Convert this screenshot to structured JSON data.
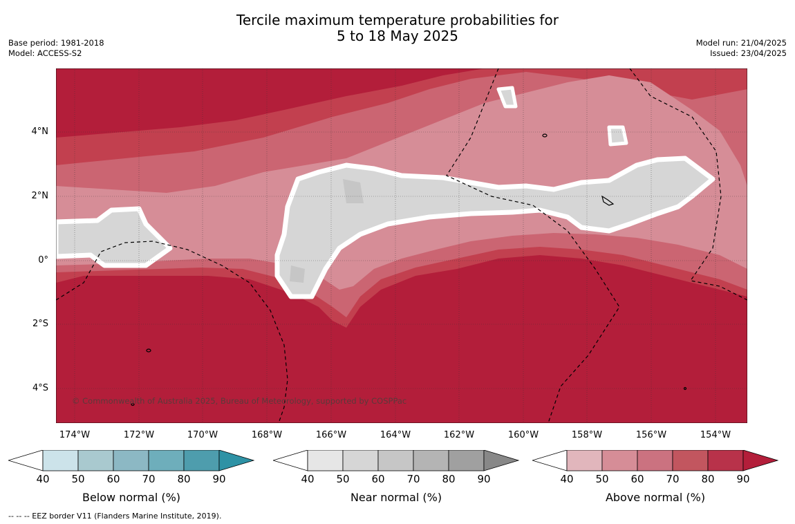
{
  "header": {
    "title_line1": "Tercile maximum temperature probabilities for",
    "title_line2": "5 to 18 May 2025",
    "base_period": "Base period: 1981-2018",
    "model": "Model: ACCESS-S2",
    "model_run": "Model run: 21/04/2025",
    "issued": "Issued: 23/04/2025"
  },
  "map": {
    "copyright": "© Commonwealth of Australia 2025, Bureau of Meteorology, supported by COSPPac",
    "lat_labels": [
      "4°N",
      "2°N",
      "0°",
      "2°S",
      "4°S"
    ],
    "lon_labels": [
      "174°W",
      "172°W",
      "170°W",
      "168°W",
      "166°W",
      "164°W",
      "162°W",
      "160°W",
      "158°W",
      "156°W",
      "154°W"
    ],
    "colors": {
      "above_90": "#b31e3a",
      "above_80": "#c2404f",
      "above_70": "#cb6572",
      "above_60": "#d68d97",
      "above_50": "#e1b6bc",
      "near": "#d6d6d6",
      "near_dark": "#c6c6c6"
    }
  },
  "legend": {
    "below": {
      "label": "Below normal (%)",
      "ticks": [
        "40",
        "50",
        "60",
        "70",
        "80",
        "90"
      ],
      "colors": [
        "#cce3ea",
        "#a9c9cf",
        "#8cb8c4",
        "#6eaebb",
        "#4e9dad",
        "#2e92a5"
      ]
    },
    "near": {
      "label": "Near normal (%)",
      "ticks": [
        "40",
        "50",
        "60",
        "70",
        "80",
        "90"
      ],
      "colors": [
        "#e6e6e6",
        "#d6d6d6",
        "#c6c6c6",
        "#b4b4b4",
        "#a0a0a0",
        "#888888"
      ]
    },
    "above": {
      "label": "Above normal (%)",
      "ticks": [
        "40",
        "50",
        "60",
        "70",
        "80",
        "90"
      ],
      "colors": [
        "#e1b6bc",
        "#d68d97",
        "#cb7280",
        "#c2565f",
        "#b8324a",
        "#b31e3a"
      ]
    }
  },
  "footnote": "--  --  -- EEZ border V11 (Flanders Marine Institute, 2019)."
}
